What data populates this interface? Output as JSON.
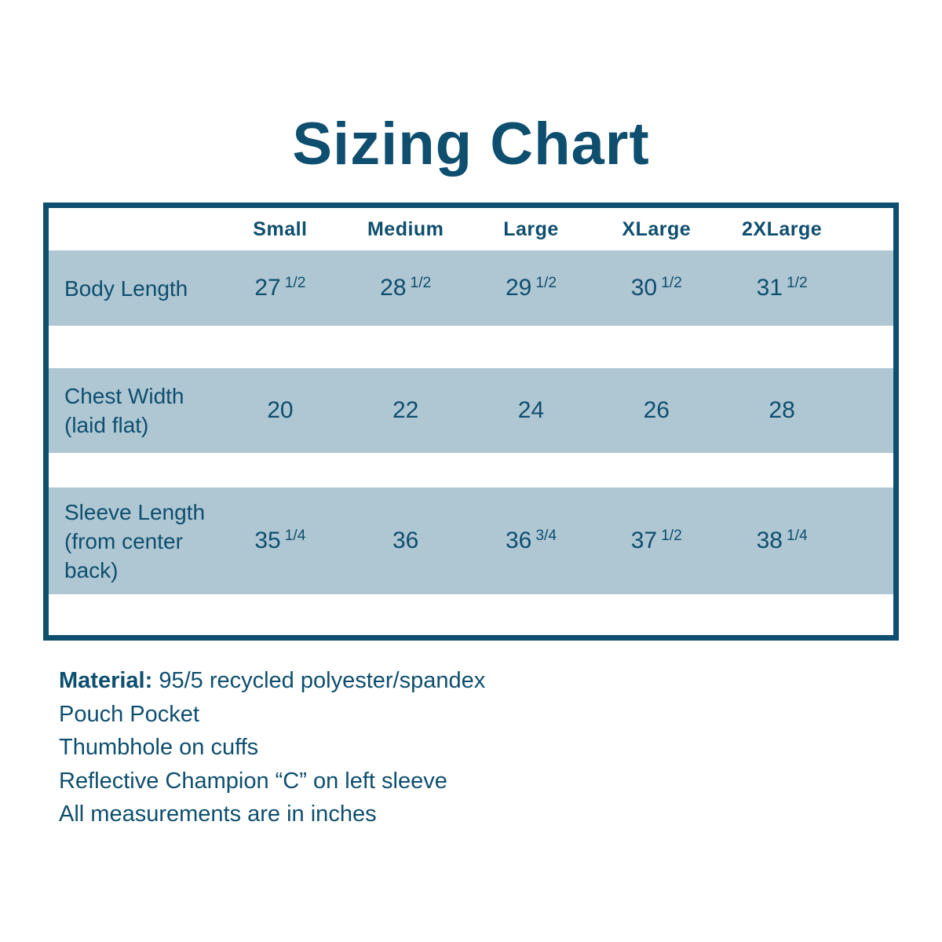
{
  "title": "Sizing Chart",
  "colors": {
    "navy_text_and_border": "#0e4e6e",
    "row_background_blue": "#afc7d3",
    "page_background": "#ffffff"
  },
  "table": {
    "columns": [
      "Small",
      "Medium",
      "Large",
      "XLarge",
      "2XLarge"
    ],
    "rows": [
      {
        "label": "Body Length",
        "label_lines": [
          "Body Length"
        ],
        "values": [
          {
            "main": "27",
            "sup": "1/2"
          },
          {
            "main": "28",
            "sup": "1/2"
          },
          {
            "main": "29",
            "sup": "1/2"
          },
          {
            "main": "30",
            "sup": "1/2"
          },
          {
            "main": "31",
            "sup": "1/2"
          }
        ]
      },
      {
        "label": "Chest Width (laid flat)",
        "label_lines": [
          "Chest Width",
          "(laid flat)"
        ],
        "values": [
          {
            "main": "20",
            "sup": ""
          },
          {
            "main": "22",
            "sup": ""
          },
          {
            "main": "24",
            "sup": ""
          },
          {
            "main": "26",
            "sup": ""
          },
          {
            "main": "28",
            "sup": ""
          }
        ]
      },
      {
        "label": "Sleeve Length (from center back)",
        "label_lines": [
          "Sleeve Length",
          "(from center",
          "back)"
        ],
        "values": [
          {
            "main": "35",
            "sup": "1/4"
          },
          {
            "main": "36",
            "sup": ""
          },
          {
            "main": "36",
            "sup": "3/4"
          },
          {
            "main": "37",
            "sup": "1/2"
          },
          {
            "main": "38",
            "sup": "1/4"
          }
        ]
      }
    ]
  },
  "notes": [
    {
      "bold": "Material:",
      "text": "95/5 recycled polyester/spandex"
    },
    {
      "bold": "",
      "text": "Pouch Pocket"
    },
    {
      "bold": "",
      "text": "Thumbhole on cuffs"
    },
    {
      "bold": "",
      "text": "Reflective Champion “C” on left sleeve"
    },
    {
      "bold": "",
      "text": "All measurements are in inches"
    }
  ],
  "chart_data": {
    "type": "table",
    "title": "Sizing Chart",
    "columns": [
      "Small",
      "Medium",
      "Large",
      "XLarge",
      "2XLarge"
    ],
    "rows": [
      {
        "label": "Body Length",
        "values": [
          "27 1/2",
          "28 1/2",
          "29 1/2",
          "30 1/2",
          "31 1/2"
        ]
      },
      {
        "label": "Chest Width (laid flat)",
        "values": [
          "20",
          "22",
          "24",
          "26",
          "28"
        ]
      },
      {
        "label": "Sleeve Length (from center back)",
        "values": [
          "35 1/4",
          "36",
          "36 3/4",
          "37 1/2",
          "38 1/4"
        ]
      }
    ],
    "units": "inches"
  }
}
